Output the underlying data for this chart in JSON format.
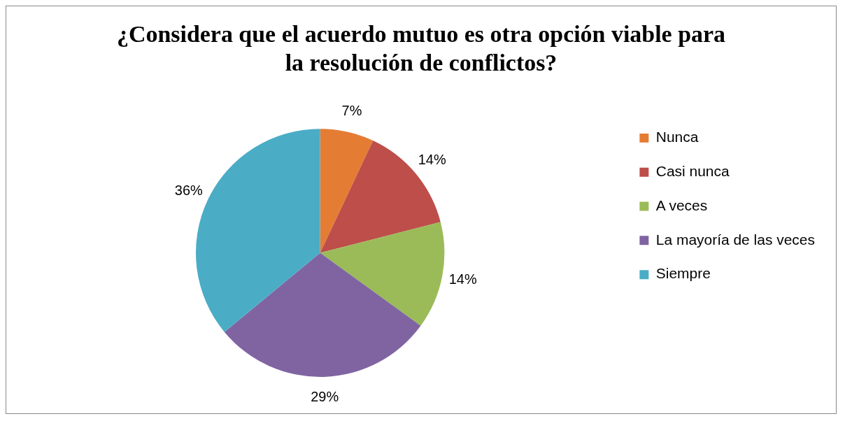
{
  "chart_data": {
    "type": "pie",
    "title": "¿Considera que el acuerdo mutuo es otra opción viable para la resolución de conflictos?",
    "categories": [
      "Nunca",
      "Casi nunca",
      "A veces",
      "La mayoría de las veces",
      "Siempre"
    ],
    "values": [
      7,
      14,
      14,
      29,
      36
    ],
    "value_labels": [
      "7%",
      "14%",
      "14%",
      "29%",
      "36%"
    ],
    "colors": [
      "#e57c33",
      "#bd4e4a",
      "#9bbb59",
      "#8064a2",
      "#4bacc6"
    ],
    "legend": "right"
  }
}
